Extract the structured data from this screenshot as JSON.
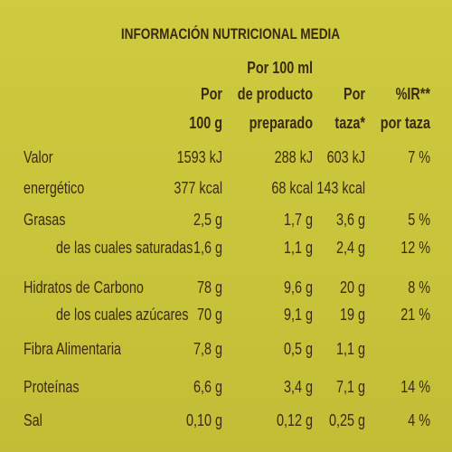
{
  "header": {
    "title": "INFORMACIÓN NUTRICIONAL MEDIA"
  },
  "table": {
    "columns": [
      {
        "lines": [
          "Por",
          "100 g"
        ]
      },
      {
        "lines": [
          "Por 100 ml",
          "de producto",
          "preparado"
        ]
      },
      {
        "lines": [
          "Por",
          "taza*"
        ]
      },
      {
        "lines": [
          "%IR**",
          "por taza"
        ]
      }
    ],
    "rows": [
      [
        "Valor",
        "1593 kJ",
        "288 kJ",
        "603 kJ",
        "7 %"
      ],
      [
        "energético",
        "377 kcal",
        "68 kcal",
        "143 kcal"
      ],
      [
        "Grasas",
        "2,5 g",
        "1,7 g",
        "3,6 g",
        "5 %"
      ],
      [
        "de las cuales saturadas",
        "1,6 g",
        "1,1 g",
        "2,4 g",
        "12 %"
      ],
      [
        "Hidratos de Carbono",
        "78 g",
        "9,6 g",
        "20 g",
        "8 %"
      ],
      [
        "de los cuales azúcares",
        "70 g",
        "9,1 g",
        "19 g",
        "21 %"
      ],
      [
        "Fibra Alimentaria",
        "7,8 g",
        "0,5 g",
        "1,1 g"
      ],
      [
        "Proteínas",
        "6,6 g",
        "3,4 g",
        "7,1 g",
        "14 %"
      ],
      [
        "Sal",
        "0,10 g",
        "0,12 g",
        "0,25 g",
        "4 %"
      ]
    ]
  }
}
